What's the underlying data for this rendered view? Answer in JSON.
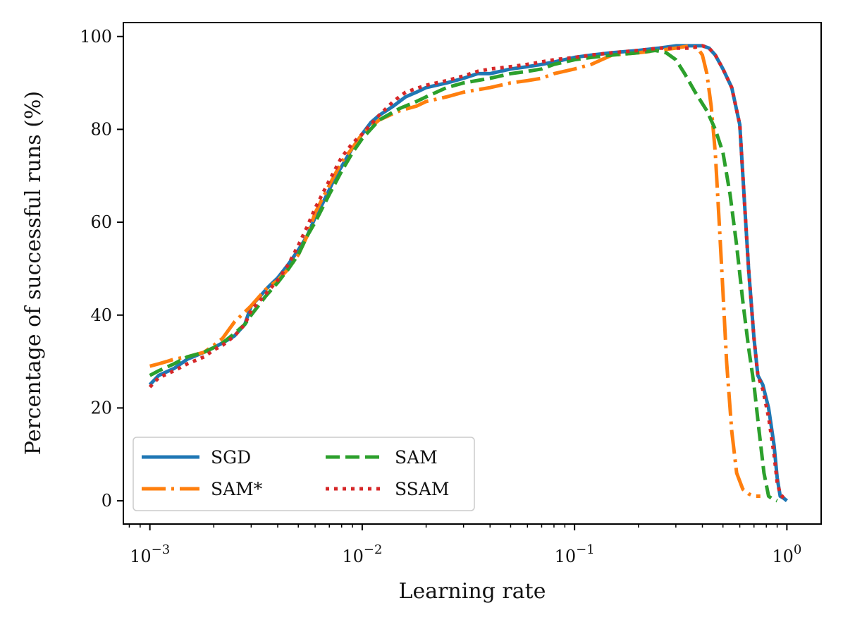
{
  "chart_data": {
    "type": "line",
    "xscale": "log",
    "xlim": [
      0.00075,
      1.45
    ],
    "ylim": [
      -5,
      103
    ],
    "xlabel": "Learning rate",
    "ylabel": "Percentage of successful runs (%)",
    "x_ticks": [
      {
        "value": 0.001,
        "base": "10",
        "exp": "−3"
      },
      {
        "value": 0.01,
        "base": "10",
        "exp": "−2"
      },
      {
        "value": 0.1,
        "base": "10",
        "exp": "−1"
      },
      {
        "value": 1,
        "base": "10",
        "exp": "0"
      }
    ],
    "y_ticks": [
      0,
      20,
      40,
      60,
      80,
      100
    ],
    "legend": {
      "position": "lower-left",
      "columns": 2
    },
    "series": [
      {
        "name": "SGD",
        "color": "#1f77b4",
        "style": "solid",
        "x": [
          0.001,
          0.0011,
          0.0013,
          0.0015,
          0.0018,
          0.002,
          0.0022,
          0.0025,
          0.0028,
          0.003,
          0.0033,
          0.0036,
          0.004,
          0.0045,
          0.005,
          0.0055,
          0.006,
          0.0065,
          0.007,
          0.0075,
          0.008,
          0.009,
          0.01,
          0.011,
          0.012,
          0.014,
          0.016,
          0.018,
          0.02,
          0.025,
          0.03,
          0.035,
          0.04,
          0.05,
          0.06,
          0.07,
          0.08,
          0.1,
          0.12,
          0.15,
          0.2,
          0.25,
          0.3,
          0.35,
          0.4,
          0.43,
          0.46,
          0.5,
          0.55,
          0.6,
          0.63,
          0.66,
          0.7,
          0.73,
          0.77,
          0.82,
          0.87,
          0.9,
          0.93,
          0.97,
          1.0
        ],
        "y": [
          25,
          27,
          28.5,
          30.5,
          32,
          33,
          34,
          35.5,
          38,
          42,
          44,
          46,
          48,
          51,
          54,
          57,
          61,
          64,
          67,
          70,
          72,
          76,
          79,
          81.5,
          83,
          85,
          87,
          88,
          89,
          90,
          91,
          92,
          92,
          93,
          93.5,
          94,
          94.5,
          95.5,
          96,
          96.5,
          97,
          97.5,
          98,
          98,
          98,
          97.5,
          96,
          93,
          89,
          81,
          65,
          50,
          35,
          27,
          25,
          20,
          12,
          5,
          1,
          0.5,
          0
        ]
      },
      {
        "name": "SAM*",
        "color": "#ff7f0e",
        "style": "dashdot",
        "x": [
          0.001,
          0.0011,
          0.0012,
          0.0013,
          0.0015,
          0.0018,
          0.002,
          0.0022,
          0.0025,
          0.003,
          0.0035,
          0.004,
          0.0045,
          0.005,
          0.0055,
          0.006,
          0.007,
          0.008,
          0.009,
          0.01,
          0.012,
          0.015,
          0.018,
          0.02,
          0.025,
          0.03,
          0.04,
          0.05,
          0.06,
          0.07,
          0.08,
          0.1,
          0.12,
          0.15,
          0.2,
          0.25,
          0.3,
          0.35,
          0.38,
          0.4,
          0.42,
          0.44,
          0.46,
          0.48,
          0.5,
          0.52,
          0.55,
          0.58,
          0.62,
          0.66,
          0.7,
          0.75
        ],
        "y": [
          29,
          29.5,
          30,
          30.5,
          31,
          32,
          33.5,
          35,
          38.5,
          42,
          45.5,
          47.5,
          50,
          53,
          57,
          62,
          68,
          73,
          76,
          79,
          82,
          84,
          85,
          86,
          87,
          88,
          89,
          90,
          90.5,
          91,
          92,
          93,
          94,
          96,
          96.5,
          97,
          97.5,
          98,
          97.5,
          96,
          92,
          85,
          75,
          60,
          45,
          30,
          15,
          6,
          2.5,
          1.5,
          1,
          1
        ]
      },
      {
        "name": "SAM",
        "color": "#2ca02c",
        "style": "dashed",
        "x": [
          0.001,
          0.0011,
          0.0013,
          0.0015,
          0.0018,
          0.002,
          0.0022,
          0.0025,
          0.0028,
          0.003,
          0.0035,
          0.004,
          0.0045,
          0.005,
          0.0055,
          0.006,
          0.007,
          0.008,
          0.009,
          0.01,
          0.012,
          0.015,
          0.018,
          0.02,
          0.025,
          0.03,
          0.04,
          0.05,
          0.06,
          0.07,
          0.08,
          0.1,
          0.12,
          0.15,
          0.2,
          0.24,
          0.27,
          0.3,
          0.33,
          0.37,
          0.42,
          0.46,
          0.5,
          0.54,
          0.58,
          0.62,
          0.66,
          0.7,
          0.74,
          0.78,
          0.82,
          0.85,
          0.9
        ],
        "y": [
          27,
          28,
          29.5,
          31,
          32,
          33,
          34,
          36,
          38,
          40,
          44,
          47,
          50,
          53,
          57,
          60,
          66,
          71,
          75,
          78,
          82,
          84.5,
          86,
          87,
          89,
          90,
          91,
          92,
          92.5,
          93,
          94,
          95,
          95.5,
          96,
          96.5,
          97,
          96.5,
          95,
          92,
          88,
          84,
          80,
          75,
          66,
          55,
          43,
          33,
          25,
          15,
          6,
          1,
          0.5,
          0
        ]
      },
      {
        "name": "SSAM",
        "color": "#d62728",
        "style": "dotted",
        "x": [
          0.001,
          0.0011,
          0.0013,
          0.0015,
          0.0018,
          0.002,
          0.0022,
          0.0025,
          0.0028,
          0.003,
          0.0035,
          0.004,
          0.0045,
          0.005,
          0.0055,
          0.006,
          0.007,
          0.008,
          0.009,
          0.01,
          0.012,
          0.014,
          0.016,
          0.02,
          0.025,
          0.03,
          0.035,
          0.04,
          0.05,
          0.06,
          0.08,
          0.1,
          0.12,
          0.15,
          0.2,
          0.25,
          0.3,
          0.35,
          0.4,
          0.43,
          0.46,
          0.5,
          0.55,
          0.6,
          0.63,
          0.66,
          0.7,
          0.73,
          0.77,
          0.82,
          0.87,
          0.9,
          0.93,
          0.97,
          1.0
        ],
        "y": [
          24.5,
          26.5,
          28,
          29.5,
          31,
          32.5,
          33.5,
          35.5,
          38,
          41,
          44.5,
          47.5,
          51,
          55,
          59,
          63,
          69,
          74,
          77,
          79,
          83,
          86,
          88,
          89.5,
          90.5,
          91.5,
          92.5,
          93,
          93.5,
          94,
          95,
          95.5,
          96,
          96.5,
          97,
          97.5,
          97.5,
          97.5,
          98,
          97.5,
          96,
          93,
          89,
          81,
          65,
          50,
          35,
          27,
          24,
          18,
          10,
          4,
          1.5,
          0.5,
          0
        ]
      }
    ]
  }
}
